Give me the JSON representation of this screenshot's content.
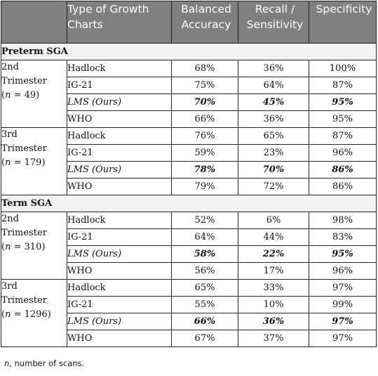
{
  "headers": [
    "Type of Growth Charts",
    "Balanced Accuracy",
    "Recall / Sensitivity",
    "Specificity"
  ],
  "header_lines": [
    [
      "Type of Growth",
      "Charts"
    ],
    [
      "Balanced",
      "Accuracy"
    ],
    [
      "Recall /",
      "Sensitivity"
    ],
    [
      "Specificity"
    ]
  ],
  "sections": [
    {
      "title": "Preterm SGA",
      "groups": [
        {
          "line1": "2nd",
          "line2": "Trimester",
          "n_label": "n",
          "n_value": "49",
          "rows": [
            {
              "chart": "Hadlock",
              "balanced_accuracy": "68%",
              "recall": "36%",
              "specificity": "100%"
            },
            {
              "chart": "IG-21",
              "balanced_accuracy": "75%",
              "recall": "64%",
              "specificity": "87%"
            },
            {
              "chart": "LMS (Ours)",
              "balanced_accuracy": "70%",
              "recall": "45%",
              "specificity": "95%",
              "ours": true
            },
            {
              "chart": "WHO",
              "balanced_accuracy": "66%",
              "recall": "36%",
              "specificity": "95%"
            }
          ]
        },
        {
          "line1": "3rd",
          "line2": "Trimester",
          "n_label": "n",
          "n_value": "179",
          "rows": [
            {
              "chart": "Hadlock",
              "balanced_accuracy": "76%",
              "recall": "65%",
              "specificity": "87%"
            },
            {
              "chart": "IG-21",
              "balanced_accuracy": "59%",
              "recall": "23%",
              "specificity": "96%"
            },
            {
              "chart": "LMS (Ours)",
              "balanced_accuracy": "78%",
              "recall": "70%",
              "specificity": "86%",
              "ours": true
            },
            {
              "chart": "WHO",
              "balanced_accuracy": "79%",
              "recall": "72%",
              "specificity": "86%"
            }
          ]
        }
      ]
    },
    {
      "title": "Term SGA",
      "groups": [
        {
          "line1": "2nd",
          "line2": "Trimester",
          "n_label": "n",
          "n_value": "310",
          "rows": [
            {
              "chart": "Hadlock",
              "balanced_accuracy": "52%",
              "recall": "6%",
              "specificity": "98%"
            },
            {
              "chart": "IG-21",
              "balanced_accuracy": "64%",
              "recall": "44%",
              "specificity": "83%"
            },
            {
              "chart": "LMS (Ours)",
              "balanced_accuracy": "58%",
              "recall": "22%",
              "specificity": "95%",
              "ours": true
            },
            {
              "chart": "WHO",
              "balanced_accuracy": "56%",
              "recall": "17%",
              "specificity": "96%"
            }
          ]
        },
        {
          "line1": "3rd",
          "line2": "Trimester",
          "n_label": "n",
          "n_value": "1296",
          "rows": [
            {
              "chart": "Hadlock",
              "balanced_accuracy": "65%",
              "recall": "33%",
              "specificity": "97%"
            },
            {
              "chart": "IG-21",
              "balanced_accuracy": "55%",
              "recall": "10%",
              "specificity": "99%"
            },
            {
              "chart": "LMS (Ours)",
              "balanced_accuracy": "66%",
              "recall": "36%",
              "specificity": "97%",
              "ours": true
            },
            {
              "chart": "WHO",
              "balanced_accuracy": "67%",
              "recall": "37%",
              "specificity": "97%"
            }
          ]
        }
      ]
    }
  ],
  "footnote": {
    "symbol": "n",
    "text": ", number of scans."
  }
}
